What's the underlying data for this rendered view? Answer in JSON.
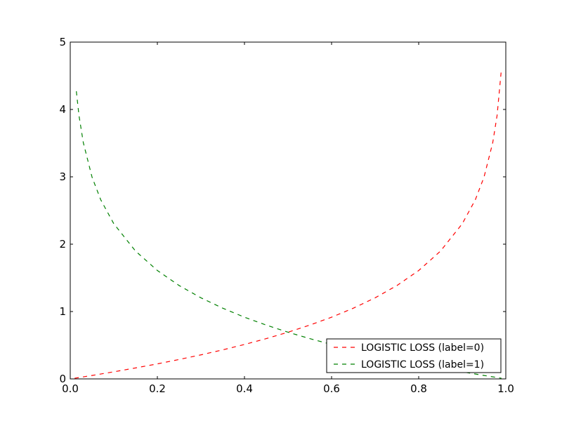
{
  "chart_data": {
    "type": "line",
    "title": "",
    "xlabel": "",
    "ylabel": "",
    "xlim": [
      0.0,
      1.0
    ],
    "ylim": [
      0,
      5
    ],
    "xticks": [
      "0.0",
      "0.2",
      "0.4",
      "0.6",
      "0.8",
      "1.0"
    ],
    "yticks": [
      "0",
      "1",
      "2",
      "3",
      "4",
      "5"
    ],
    "grid": false,
    "legend_position": "lower-right",
    "series": [
      {
        "name": "LOGISTIC LOSS (label=0)",
        "color": "#ff0000",
        "line_style": "dashed",
        "x": [
          0.01,
          0.05,
          0.1,
          0.15,
          0.2,
          0.25,
          0.3,
          0.35,
          0.4,
          0.45,
          0.5,
          0.55,
          0.6,
          0.65,
          0.7,
          0.75,
          0.8,
          0.85,
          0.9,
          0.93,
          0.95,
          0.97,
          0.98,
          0.99
        ],
        "y": [
          0.01,
          0.051,
          0.105,
          0.163,
          0.223,
          0.288,
          0.357,
          0.431,
          0.511,
          0.598,
          0.693,
          0.799,
          0.916,
          1.05,
          1.204,
          1.386,
          1.609,
          1.897,
          2.303,
          2.659,
          2.996,
          3.507,
          3.912,
          4.605
        ]
      },
      {
        "name": "LOGISTIC LOSS (label=1)",
        "color": "#008000",
        "line_style": "dashed",
        "x": [
          0.014,
          0.02,
          0.03,
          0.05,
          0.07,
          0.1,
          0.15,
          0.2,
          0.25,
          0.3,
          0.35,
          0.4,
          0.45,
          0.5,
          0.55,
          0.6,
          0.65,
          0.7,
          0.75,
          0.8,
          0.85,
          0.9,
          0.95,
          0.99
        ],
        "y": [
          4.27,
          3.912,
          3.507,
          2.996,
          2.659,
          2.303,
          1.897,
          1.609,
          1.386,
          1.204,
          1.05,
          0.916,
          0.799,
          0.693,
          0.598,
          0.511,
          0.431,
          0.357,
          0.288,
          0.223,
          0.163,
          0.105,
          0.051,
          0.01
        ]
      }
    ]
  }
}
